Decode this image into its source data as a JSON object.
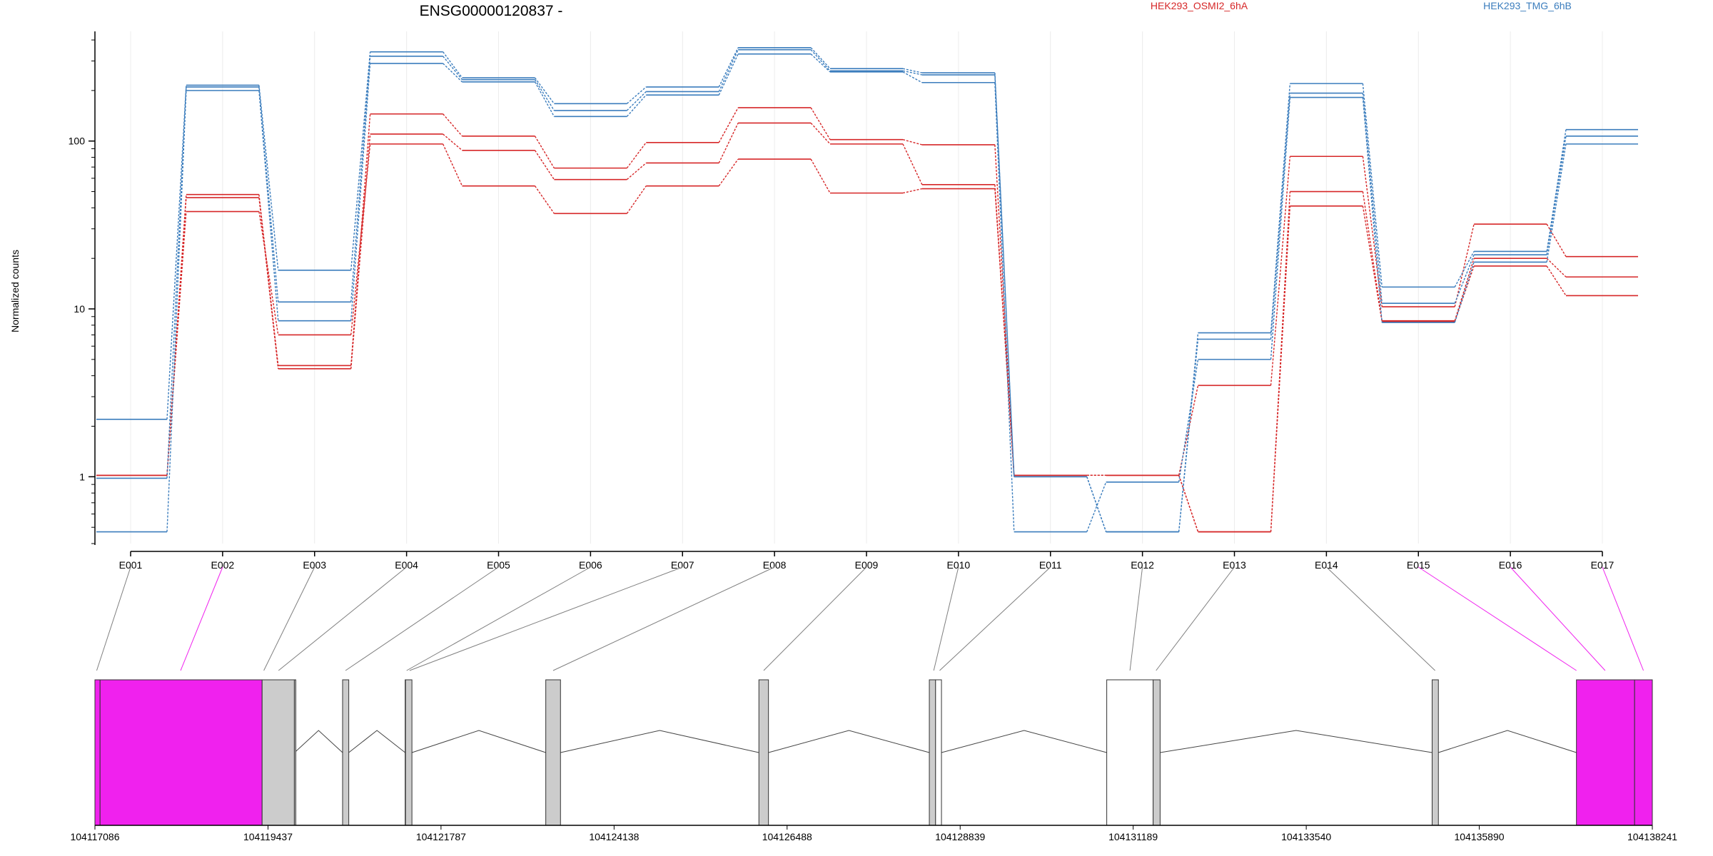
{
  "title": "ENSG00000120837 -",
  "ylabel": "Normalized counts",
  "legend": [
    {
      "label": "HEK293_OSMI2_6hA",
      "color": "#d62728"
    },
    {
      "label": "HEK293_TMG_6hB",
      "color": "#3b7dbd"
    }
  ],
  "colors": {
    "red": "#d62728",
    "blue": "#3b7dbd",
    "highlight": "#f021ee",
    "exon": "#cccccc",
    "connector": "#7f7f7f",
    "axis": "#000000",
    "grid": "#ececec"
  },
  "chart_data": {
    "type": "line",
    "scale": "log",
    "ylim": [
      0.4,
      450
    ],
    "yticks": [
      {
        "v": 1,
        "label": "1"
      },
      {
        "v": 10,
        "label": "10"
      },
      {
        "v": 100,
        "label": "100"
      }
    ],
    "bins": [
      "E001",
      "E002",
      "E003",
      "E004",
      "E005",
      "E006",
      "E007",
      "E008",
      "E009",
      "E010",
      "E011",
      "E012",
      "E013",
      "E014",
      "E015",
      "E016",
      "E017"
    ],
    "series": [
      {
        "group": "red",
        "values": [
          1.02,
          48,
          4.6,
          145,
          107,
          69,
          98,
          158,
          102,
          95,
          1.02,
          1.02,
          3.5,
          81,
          10.3,
          32,
          20.5
        ]
      },
      {
        "group": "red",
        "values": [
          1.02,
          46,
          4.4,
          110,
          88,
          59,
          74,
          128,
          96,
          55,
          1.02,
          1.02,
          0.47,
          50,
          8.5,
          20,
          15.5
        ]
      },
      {
        "group": "red",
        "values": [
          1.02,
          38,
          7.0,
          96,
          54,
          37,
          54,
          78,
          49,
          52,
          1.02,
          1.02,
          0.47,
          41,
          8.4,
          18,
          12
        ]
      },
      {
        "group": "blue",
        "values": [
          2.2,
          215,
          17,
          340,
          238,
          167,
          210,
          360,
          270,
          255,
          1.0,
          0.47,
          7.2,
          220,
          13.5,
          22,
          117
        ]
      },
      {
        "group": "blue",
        "values": [
          0.98,
          210,
          11,
          320,
          232,
          152,
          197,
          350,
          262,
          248,
          1.0,
          0.47,
          6.6,
          193,
          10.8,
          21,
          107
        ]
      },
      {
        "group": "blue",
        "values": [
          0.47,
          200,
          8.5,
          290,
          225,
          140,
          188,
          330,
          258,
          223,
          0.47,
          0.93,
          5.0,
          182,
          8.3,
          19,
          96
        ]
      }
    ]
  },
  "gene_model": {
    "coordinates": [
      "104117086",
      "104119437",
      "104121787",
      "104124138",
      "104126488",
      "104128839",
      "104131189",
      "104133540",
      "104135890",
      "104138241"
    ],
    "exons": [
      {
        "start": 104117086,
        "end": 104117156,
        "fill": "highlight"
      },
      {
        "start": 104117156,
        "end": 104119357,
        "fill": "highlight"
      },
      {
        "start": 104119357,
        "end": 104119795,
        "fill": "exon"
      },
      {
        "start": 104119795,
        "end": 104119797,
        "fill": "exon"
      },
      {
        "start": 104120450,
        "end": 104120534,
        "fill": "exon"
      },
      {
        "start": 104121300,
        "end": 104121305,
        "fill": "exon"
      },
      {
        "start": 104121305,
        "end": 104121392,
        "fill": "exon"
      },
      {
        "start": 104123210,
        "end": 104123410,
        "fill": "exon"
      },
      {
        "start": 104126105,
        "end": 104126235,
        "fill": "exon"
      },
      {
        "start": 104128420,
        "end": 104128505,
        "fill": "exon"
      },
      {
        "start": 104128505,
        "end": 104128585,
        "fill": "none"
      },
      {
        "start": 104130830,
        "end": 104131460,
        "fill": "none"
      },
      {
        "start": 104131460,
        "end": 104131555,
        "fill": "exon"
      },
      {
        "start": 104135250,
        "end": 104135335,
        "fill": "exon"
      },
      {
        "start": 104137210,
        "end": 104138000,
        "fill": "highlight"
      },
      {
        "start": 104138000,
        "end": 104138241,
        "fill": "highlight"
      }
    ],
    "bin_links": [
      {
        "bin": 0,
        "pos": 104117110,
        "highlight": false
      },
      {
        "bin": 1,
        "pos": 104118250,
        "highlight": true
      },
      {
        "bin": 2,
        "pos": 104119380,
        "highlight": false
      },
      {
        "bin": 3,
        "pos": 104119580,
        "highlight": false
      },
      {
        "bin": 4,
        "pos": 104120490,
        "highlight": false
      },
      {
        "bin": 5,
        "pos": 104121320,
        "highlight": false
      },
      {
        "bin": 6,
        "pos": 104121360,
        "highlight": false
      },
      {
        "bin": 7,
        "pos": 104123310,
        "highlight": false
      },
      {
        "bin": 8,
        "pos": 104126170,
        "highlight": false
      },
      {
        "bin": 9,
        "pos": 104128480,
        "highlight": false
      },
      {
        "bin": 10,
        "pos": 104128560,
        "highlight": false
      },
      {
        "bin": 11,
        "pos": 104131145,
        "highlight": false
      },
      {
        "bin": 12,
        "pos": 104131500,
        "highlight": false
      },
      {
        "bin": 13,
        "pos": 104135290,
        "highlight": false
      },
      {
        "bin": 14,
        "pos": 104137210,
        "highlight": true
      },
      {
        "bin": 15,
        "pos": 104137600,
        "highlight": true
      },
      {
        "bin": 16,
        "pos": 104138120,
        "highlight": true
      }
    ]
  }
}
